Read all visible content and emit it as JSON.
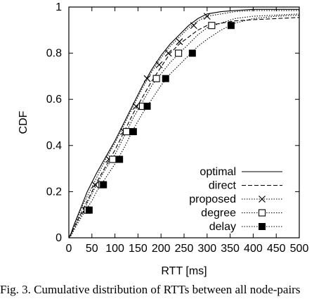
{
  "caption": "Fig. 3.   Cumulative distribution of RTTs between all node-pairs",
  "chart_data": {
    "type": "line",
    "xlabel": "RTT [ms]",
    "ylabel": "CDF",
    "title": "",
    "xlim": [
      0,
      500
    ],
    "ylim": [
      0,
      1
    ],
    "xticks": [
      "0",
      "50",
      "100",
      "150",
      "200",
      "250",
      "300",
      "350",
      "400",
      "450",
      "500"
    ],
    "yticks": [
      "0",
      "0.2",
      "0.4",
      "0.6",
      "0.8",
      "1"
    ],
    "grid": false,
    "legend_position": "bottom-right",
    "series": [
      {
        "name": "optimal",
        "line_style": "solid",
        "marker": "none",
        "x": [
          0,
          5,
          10,
          20,
          30,
          40,
          50,
          60,
          80,
          100,
          120,
          140,
          160,
          180,
          200,
          220,
          240,
          260,
          280,
          300,
          330,
          360,
          400,
          450,
          500
        ],
        "y": [
          0,
          0.02,
          0.05,
          0.1,
          0.15,
          0.2,
          0.24,
          0.28,
          0.35,
          0.42,
          0.5,
          0.58,
          0.66,
          0.73,
          0.79,
          0.84,
          0.88,
          0.92,
          0.95,
          0.97,
          0.98,
          0.985,
          0.99,
          0.99,
          0.99
        ]
      },
      {
        "name": "direct",
        "line_style": "dashed",
        "marker": "none",
        "x": [
          0,
          5,
          10,
          20,
          30,
          40,
          50,
          60,
          80,
          100,
          120,
          140,
          160,
          180,
          200,
          220,
          240,
          260,
          280,
          300,
          330,
          360,
          400,
          450,
          500
        ],
        "y": [
          0,
          0.015,
          0.04,
          0.08,
          0.12,
          0.16,
          0.2,
          0.24,
          0.31,
          0.38,
          0.46,
          0.54,
          0.61,
          0.68,
          0.74,
          0.8,
          0.84,
          0.87,
          0.9,
          0.92,
          0.93,
          0.94,
          0.945,
          0.95,
          0.955
        ]
      },
      {
        "name": "proposed",
        "line_style": "dotted",
        "marker": "cross",
        "x": [
          0,
          5,
          10,
          20,
          30,
          40,
          50,
          60,
          80,
          100,
          120,
          140,
          160,
          180,
          200,
          220,
          240,
          260,
          280,
          300,
          330,
          360,
          400,
          450,
          500
        ],
        "y": [
          0,
          0.02,
          0.05,
          0.09,
          0.14,
          0.18,
          0.22,
          0.26,
          0.34,
          0.41,
          0.49,
          0.57,
          0.65,
          0.72,
          0.78,
          0.83,
          0.87,
          0.91,
          0.94,
          0.96,
          0.97,
          0.98,
          0.985,
          0.985,
          0.985
        ],
        "marker_x": [
          36,
          57,
          87,
          119,
          146,
          170,
          196,
          216,
          240,
          271,
          300
        ],
        "marker_y": [
          0.12,
          0.23,
          0.34,
          0.46,
          0.57,
          0.69,
          0.75,
          0.8,
          0.85,
          0.92,
          0.96
        ]
      },
      {
        "name": "degree",
        "line_style": "dotted",
        "marker": "open-square",
        "x": [
          0,
          5,
          10,
          20,
          30,
          40,
          50,
          60,
          80,
          100,
          120,
          140,
          160,
          180,
          200,
          220,
          240,
          260,
          280,
          300,
          330,
          360,
          400,
          450,
          500
        ],
        "y": [
          0,
          0.015,
          0.035,
          0.075,
          0.11,
          0.15,
          0.19,
          0.23,
          0.3,
          0.36,
          0.44,
          0.52,
          0.59,
          0.66,
          0.71,
          0.76,
          0.8,
          0.84,
          0.88,
          0.91,
          0.93,
          0.95,
          0.96,
          0.965,
          0.97
        ],
        "marker_x": [
          40,
          72,
          95,
          125,
          160,
          190,
          238,
          310
        ],
        "marker_y": [
          0.12,
          0.23,
          0.34,
          0.46,
          0.57,
          0.69,
          0.8,
          0.92
        ]
      },
      {
        "name": "delay",
        "line_style": "dotted",
        "marker": "filled-square",
        "x": [
          0,
          5,
          10,
          20,
          30,
          40,
          50,
          60,
          80,
          100,
          120,
          140,
          160,
          180,
          200,
          220,
          240,
          260,
          280,
          300,
          330,
          360,
          400,
          450,
          500
        ],
        "y": [
          0,
          0.01,
          0.03,
          0.065,
          0.1,
          0.13,
          0.16,
          0.2,
          0.26,
          0.32,
          0.39,
          0.47,
          0.54,
          0.6,
          0.66,
          0.71,
          0.75,
          0.79,
          0.83,
          0.86,
          0.9,
          0.93,
          0.95,
          0.96,
          0.965
        ],
        "marker_x": [
          44,
          75,
          110,
          140,
          170,
          210,
          268,
          352
        ],
        "marker_y": [
          0.12,
          0.23,
          0.34,
          0.46,
          0.57,
          0.69,
          0.8,
          0.92
        ]
      }
    ]
  }
}
